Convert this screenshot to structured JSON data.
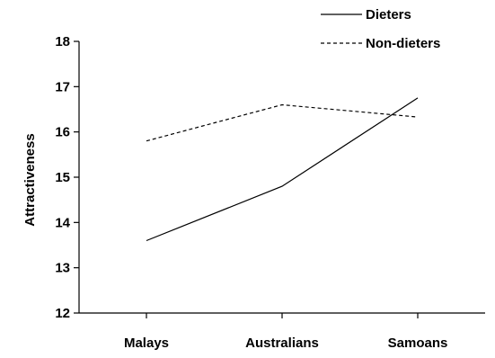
{
  "chart_data": {
    "type": "line",
    "title": "",
    "xlabel": "",
    "ylabel": "Attractiveness",
    "categories": [
      "Malays",
      "Australians",
      "Samoans"
    ],
    "ylim": [
      12,
      18
    ],
    "yticks": [
      "12",
      "13",
      "14",
      "15",
      "16",
      "17",
      "18"
    ],
    "grid": false,
    "legend_position": "top-right",
    "series": [
      {
        "name": "Dieters",
        "style": "solid",
        "color": "#000000",
        "values": [
          13.6,
          14.8,
          16.75
        ]
      },
      {
        "name": "Non-dieters",
        "style": "dashed",
        "color": "#000000",
        "values": [
          15.8,
          16.6,
          16.33
        ]
      }
    ]
  }
}
